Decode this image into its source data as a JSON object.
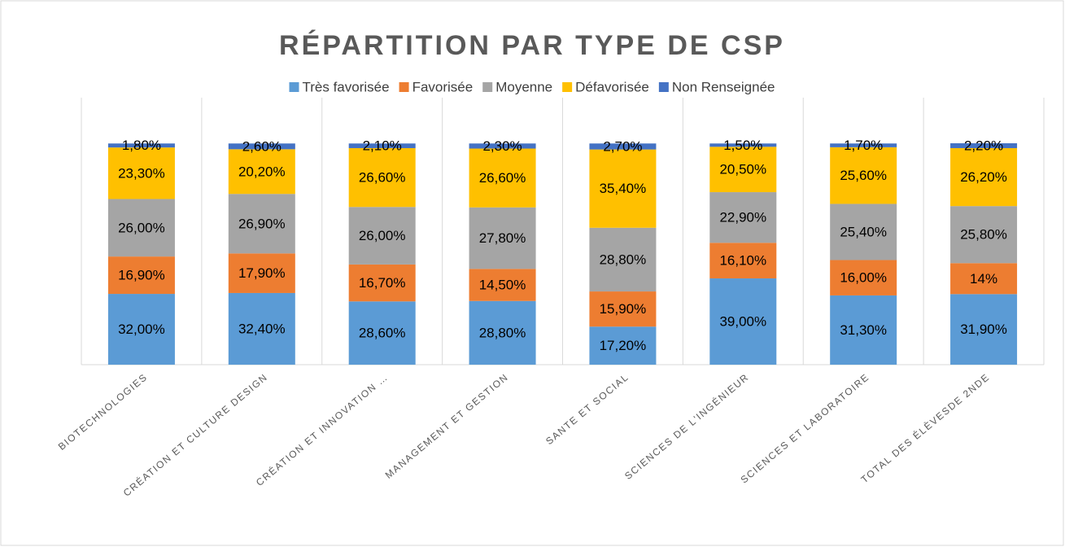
{
  "chart_data": {
    "type": "stacked_bar",
    "title": "RÉPARTITION PAR TYPE DE CSP",
    "categories": [
      "BIOTECHNOLOGIES",
      "CRÉATION ET CULTURE DESIGN",
      "CRÉATION ET INNOVATION …",
      "MANAGEMENT ET GESTION",
      "SANTE ET SOCIAL",
      "SCIENCES DE L'INGÉNIEUR",
      "SCIENCES ET LABORATOIRE",
      "TOTAL DES ÉLÈVESDE 2NDE"
    ],
    "series": [
      {
        "name": "Très favorisée",
        "color": "#5b9bd5",
        "values": [
          32,
          32.4,
          28.6,
          28.8,
          17.2,
          39,
          31.3,
          31.9
        ],
        "value_labels": [
          "32,00%",
          "32,40%",
          "28,60%",
          "28,80%",
          "17,20%",
          "39,00%",
          "31,30%",
          "31,90%"
        ]
      },
      {
        "name": "Favorisée",
        "color": "#ed7d31",
        "values": [
          16.9,
          17.9,
          16.7,
          14.5,
          15.9,
          16.1,
          16,
          14
        ],
        "value_labels": [
          "16,90%",
          "17,90%",
          "16,70%",
          "14,50%",
          "15,90%",
          "16,10%",
          "16,00%",
          "14%"
        ]
      },
      {
        "name": "Moyenne",
        "color": "#a5a5a5",
        "values": [
          26,
          26.9,
          26,
          27.8,
          28.8,
          22.9,
          25.4,
          25.8
        ],
        "value_labels": [
          "26,00%",
          "26,90%",
          "26,00%",
          "27,80%",
          "28,80%",
          "22,90%",
          "25,40%",
          "25,80%"
        ]
      },
      {
        "name": "Défavorisée",
        "color": "#ffc000",
        "values": [
          23.3,
          20.2,
          26.6,
          26.6,
          35.4,
          20.5,
          25.6,
          26.2
        ],
        "value_labels": [
          "23,30%",
          "20,20%",
          "26,60%",
          "26,60%",
          "35,40%",
          "20,50%",
          "25,60%",
          "26,20%"
        ]
      },
      {
        "name": "Non Renseignée",
        "color": "#4472c4",
        "values": [
          1.8,
          2.6,
          2.1,
          2.3,
          2.7,
          1.5,
          1.7,
          2.2
        ],
        "value_labels": [
          "1,80%",
          "2,60%",
          "2,10%",
          "2,30%",
          "2,70%",
          "1,50%",
          "1,70%",
          "2,20%"
        ]
      }
    ]
  }
}
